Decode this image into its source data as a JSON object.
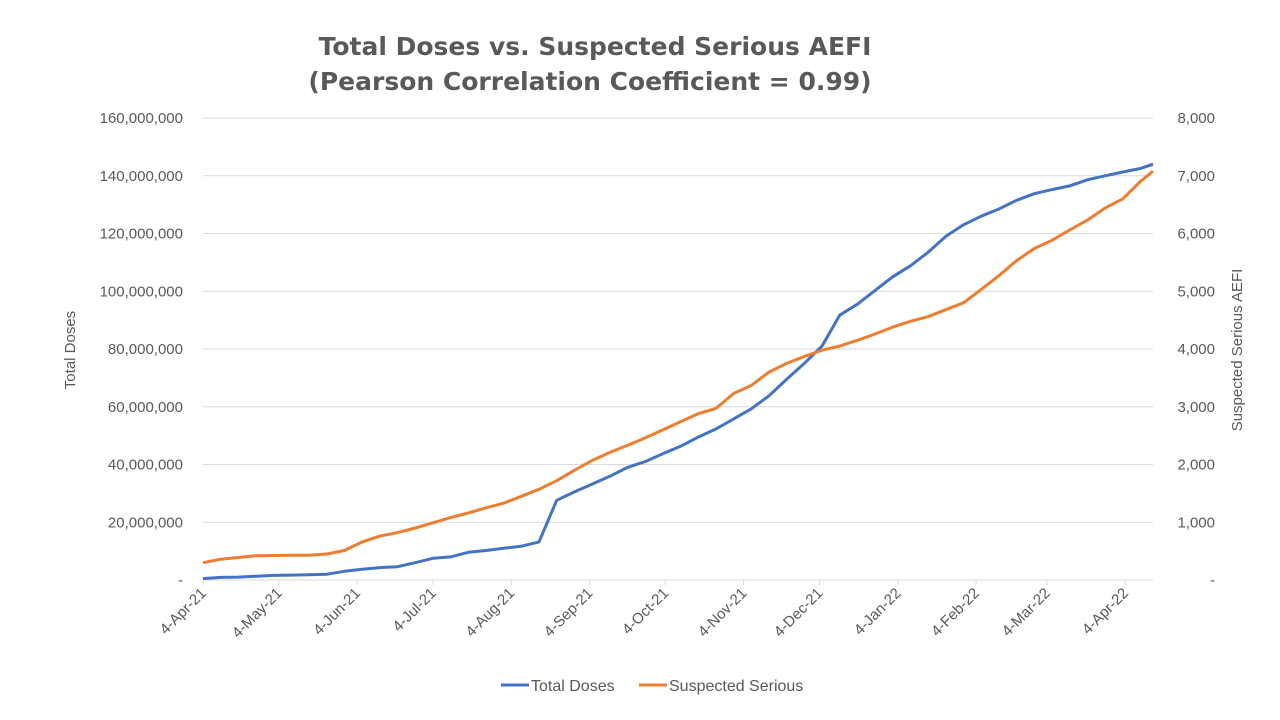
{
  "chart_data": {
    "type": "line",
    "title": [
      "Total Doses vs. Suspected Serious AEFI",
      "(Pearson Correlation Coefficient = 0.99)"
    ],
    "xlabel": "",
    "ylabel_left": "Total Doses",
    "ylabel_right": "Suspected Serious AEFI",
    "ylim_left": [
      0,
      160000000
    ],
    "ylim_right": [
      0,
      8000
    ],
    "x_range": [
      "2021-04-04",
      "2022-04-15"
    ],
    "x_ticks": [
      {
        "label": "4-Apr-21",
        "date": "2021-04-04"
      },
      {
        "label": "4-May-21",
        "date": "2021-05-04"
      },
      {
        "label": "4-Jun-21",
        "date": "2021-06-04"
      },
      {
        "label": "4-Jul-21",
        "date": "2021-07-04"
      },
      {
        "label": "4-Aug-21",
        "date": "2021-08-04"
      },
      {
        "label": "4-Sep-21",
        "date": "2021-09-04"
      },
      {
        "label": "4-Oct-21",
        "date": "2021-10-04"
      },
      {
        "label": "4-Nov-21",
        "date": "2021-11-04"
      },
      {
        "label": "4-Dec-21",
        "date": "2021-12-04"
      },
      {
        "label": "4-Jan-22",
        "date": "2022-01-04"
      },
      {
        "label": "4-Feb-22",
        "date": "2022-02-04"
      },
      {
        "label": "4-Mar-22",
        "date": "2022-03-04"
      },
      {
        "label": "4-Apr-22",
        "date": "2022-04-04"
      }
    ],
    "y_ticks_left": [
      {
        "label": "-",
        "value": 0
      },
      {
        "label": "20,000,000",
        "value": 20000000
      },
      {
        "label": "40,000,000",
        "value": 40000000
      },
      {
        "label": "60,000,000",
        "value": 60000000
      },
      {
        "label": "80,000,000",
        "value": 80000000
      },
      {
        "label": "100,000,000",
        "value": 100000000
      },
      {
        "label": "120,000,000",
        "value": 120000000
      },
      {
        "label": "140,000,000",
        "value": 140000000
      },
      {
        "label": "160,000,000",
        "value": 160000000
      }
    ],
    "y_ticks_right": [
      {
        "label": "-",
        "value": 0
      },
      {
        "label": "1,000",
        "value": 1000
      },
      {
        "label": "2,000",
        "value": 2000
      },
      {
        "label": "3,000",
        "value": 3000
      },
      {
        "label": "4,000",
        "value": 4000
      },
      {
        "label": "5,000",
        "value": 5000
      },
      {
        "label": "6,000",
        "value": 6000
      },
      {
        "label": "7,000",
        "value": 7000
      },
      {
        "label": "8,000",
        "value": 8000
      }
    ],
    "grid": true,
    "legend_position": "bottom",
    "series": [
      {
        "name": "Total Doses",
        "axis": "left",
        "color": "#4472c4",
        "points": [
          [
            "2021-04-04",
            500000
          ],
          [
            "2021-04-11",
            900000
          ],
          [
            "2021-04-18",
            1000000
          ],
          [
            "2021-04-25",
            1300000
          ],
          [
            "2021-05-02",
            1600000
          ],
          [
            "2021-05-09",
            1700000
          ],
          [
            "2021-05-16",
            1800000
          ],
          [
            "2021-05-23",
            2000000
          ],
          [
            "2021-05-30",
            3000000
          ],
          [
            "2021-06-06",
            3700000
          ],
          [
            "2021-06-13",
            4300000
          ],
          [
            "2021-06-20",
            4600000
          ],
          [
            "2021-06-27",
            6000000
          ],
          [
            "2021-07-04",
            7500000
          ],
          [
            "2021-07-11",
            8000000
          ],
          [
            "2021-07-18",
            9600000
          ],
          [
            "2021-07-25",
            10200000
          ],
          [
            "2021-08-01",
            11000000
          ],
          [
            "2021-08-08",
            11700000
          ],
          [
            "2021-08-15",
            13200000
          ],
          [
            "2021-08-22",
            27600000
          ],
          [
            "2021-08-29",
            30500000
          ],
          [
            "2021-09-05",
            33200000
          ],
          [
            "2021-09-12",
            35900000
          ],
          [
            "2021-09-19",
            39000000
          ],
          [
            "2021-09-26",
            41000000
          ],
          [
            "2021-10-03",
            43700000
          ],
          [
            "2021-10-10",
            46300000
          ],
          [
            "2021-10-17",
            49500000
          ],
          [
            "2021-10-24",
            52300000
          ],
          [
            "2021-10-31",
            55800000
          ],
          [
            "2021-11-07",
            59300000
          ],
          [
            "2021-11-14",
            63800000
          ],
          [
            "2021-11-21",
            69500000
          ],
          [
            "2021-11-28",
            75000000
          ],
          [
            "2021-12-05",
            81000000
          ],
          [
            "2021-12-12",
            91700000
          ],
          [
            "2021-12-19",
            95500000
          ],
          [
            "2021-12-26",
            100300000
          ],
          [
            "2022-01-02",
            105000000
          ],
          [
            "2022-01-09",
            108800000
          ],
          [
            "2022-01-16",
            113500000
          ],
          [
            "2022-01-23",
            119000000
          ],
          [
            "2022-01-30",
            123000000
          ],
          [
            "2022-02-06",
            126000000
          ],
          [
            "2022-02-13",
            128500000
          ],
          [
            "2022-02-20",
            131500000
          ],
          [
            "2022-02-27",
            133800000
          ],
          [
            "2022-03-06",
            135200000
          ],
          [
            "2022-03-13",
            136500000
          ],
          [
            "2022-03-20",
            138600000
          ],
          [
            "2022-03-27",
            140000000
          ],
          [
            "2022-04-03",
            141300000
          ],
          [
            "2022-04-10",
            142500000
          ],
          [
            "2022-04-15",
            144000000
          ]
        ]
      },
      {
        "name": "Suspected Serious",
        "axis": "right",
        "color": "#ed7d31",
        "points": [
          [
            "2021-04-04",
            300
          ],
          [
            "2021-04-11",
            360
          ],
          [
            "2021-04-18",
            390
          ],
          [
            "2021-04-25",
            420
          ],
          [
            "2021-05-02",
            425
          ],
          [
            "2021-05-09",
            430
          ],
          [
            "2021-05-16",
            430
          ],
          [
            "2021-05-23",
            450
          ],
          [
            "2021-05-30",
            510
          ],
          [
            "2021-06-06",
            660
          ],
          [
            "2021-06-13",
            760
          ],
          [
            "2021-06-20",
            820
          ],
          [
            "2021-06-27",
            900
          ],
          [
            "2021-07-04",
            990
          ],
          [
            "2021-07-11",
            1080
          ],
          [
            "2021-07-18",
            1160
          ],
          [
            "2021-07-25",
            1250
          ],
          [
            "2021-08-01",
            1330
          ],
          [
            "2021-08-08",
            1450
          ],
          [
            "2021-08-15",
            1570
          ],
          [
            "2021-08-22",
            1720
          ],
          [
            "2021-08-29",
            1900
          ],
          [
            "2021-09-05",
            2070
          ],
          [
            "2021-09-12",
            2210
          ],
          [
            "2021-09-19",
            2330
          ],
          [
            "2021-09-26",
            2460
          ],
          [
            "2021-10-03",
            2600
          ],
          [
            "2021-10-10",
            2740
          ],
          [
            "2021-10-17",
            2880
          ],
          [
            "2021-10-24",
            2970
          ],
          [
            "2021-10-31",
            3230
          ],
          [
            "2021-11-07",
            3370
          ],
          [
            "2021-11-14",
            3600
          ],
          [
            "2021-11-21",
            3750
          ],
          [
            "2021-11-28",
            3870
          ],
          [
            "2021-12-05",
            3980
          ],
          [
            "2021-12-12",
            4050
          ],
          [
            "2021-12-19",
            4150
          ],
          [
            "2021-12-26",
            4260
          ],
          [
            "2022-01-02",
            4380
          ],
          [
            "2022-01-09",
            4480
          ],
          [
            "2022-01-16",
            4560
          ],
          [
            "2022-01-23",
            4680
          ],
          [
            "2022-01-30",
            4800
          ],
          [
            "2022-02-06",
            5030
          ],
          [
            "2022-02-13",
            5270
          ],
          [
            "2022-02-20",
            5530
          ],
          [
            "2022-02-27",
            5740
          ],
          [
            "2022-03-06",
            5880
          ],
          [
            "2022-03-13",
            6060
          ],
          [
            "2022-03-20",
            6230
          ],
          [
            "2022-03-27",
            6440
          ],
          [
            "2022-04-03",
            6600
          ],
          [
            "2022-04-10",
            6900
          ],
          [
            "2022-04-15",
            7080
          ]
        ]
      }
    ]
  }
}
